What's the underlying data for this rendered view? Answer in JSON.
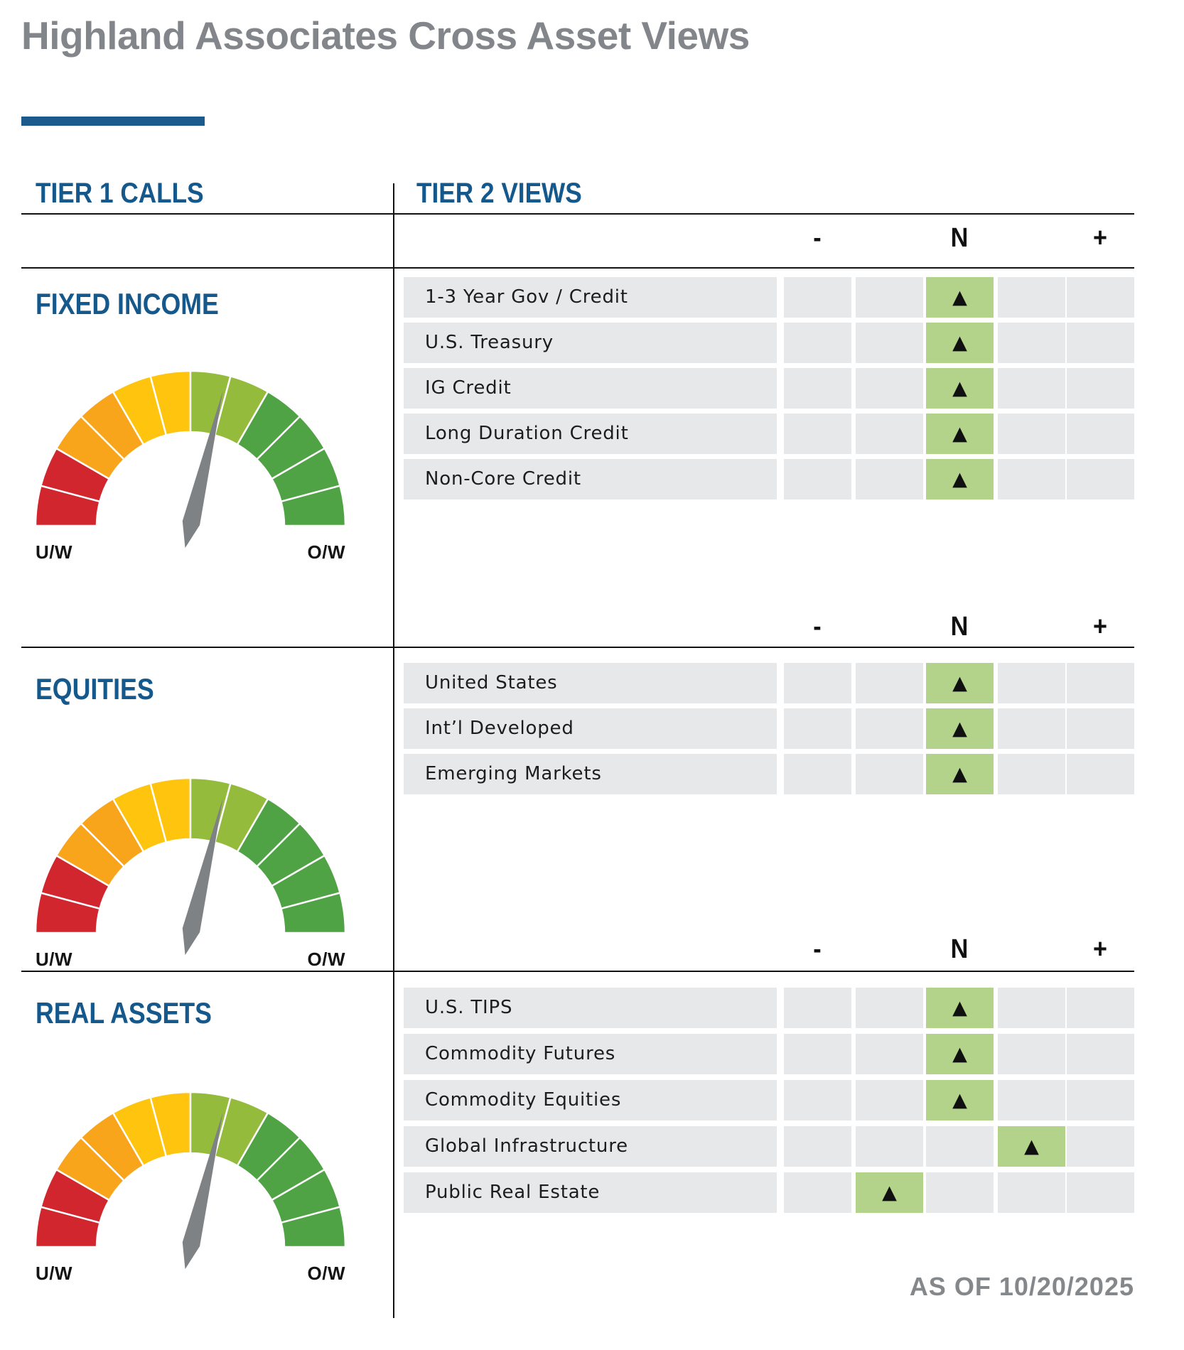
{
  "page": {
    "title": "Highland Associates Cross Asset Views",
    "as_of": "AS OF 10/20/2025"
  },
  "tiers": {
    "tier1": "TIER 1 CALLS",
    "tier2": "TIER 2 VIEWS"
  },
  "scale": {
    "minus": "-",
    "neutral": "N",
    "plus": "+"
  },
  "marker_glyph": "▲",
  "colors": {
    "accent_blue": "#14588c",
    "title_gray": "#828589",
    "cell_gray": "#e7e8e9",
    "active_green": "#b3d38b",
    "text_dark": "#1d1d1f",
    "line_black": "#121212",
    "needle_gray": "#7f8285"
  },
  "gauge": {
    "left_label": "U/W",
    "right_label": "O/W",
    "needle_angle_deg": 13.5,
    "segment_colors": [
      "#d2262e",
      "#d2262e",
      "#f9a51c",
      "#f9a51c",
      "#ffc40e",
      "#ffc40e",
      "#94bb3c",
      "#94bb3c",
      "#50a345",
      "#50a345",
      "#50a345",
      "#50a345"
    ]
  },
  "sections": [
    {
      "name": "FIXED INCOME",
      "rows": [
        {
          "label": "1-3 Year Gov / Credit",
          "position": 2
        },
        {
          "label": "U.S. Treasury",
          "position": 2
        },
        {
          "label": "IG Credit",
          "position": 2
        },
        {
          "label": "Long Duration Credit",
          "position": 2
        },
        {
          "label": "Non-Core Credit",
          "position": 2
        }
      ]
    },
    {
      "name": "EQUITIES",
      "rows": [
        {
          "label": "United States",
          "position": 2
        },
        {
          "label": "Int’l Developed",
          "position": 2
        },
        {
          "label": "Emerging Markets",
          "position": 2
        }
      ]
    },
    {
      "name": "REAL ASSETS",
      "rows": [
        {
          "label": "U.S. TIPS",
          "position": 2
        },
        {
          "label": "Commodity Futures",
          "position": 2
        },
        {
          "label": "Commodity Equities",
          "position": 2
        },
        {
          "label": "Global Infrastructure",
          "position": 3
        },
        {
          "label": "Public Real Estate",
          "position": 1
        }
      ]
    }
  ],
  "chart_data": [
    {
      "type": "gauge",
      "title": "FIXED INCOME",
      "scale_left": "U/W",
      "scale_right": "O/W",
      "segments": 12,
      "reading": "needle slightly right of neutral (mild overweight lean)"
    },
    {
      "type": "gauge",
      "title": "EQUITIES",
      "scale_left": "U/W",
      "scale_right": "O/W",
      "segments": 12,
      "reading": "needle slightly right of neutral (mild overweight lean)"
    },
    {
      "type": "gauge",
      "title": "REAL ASSETS",
      "scale_left": "U/W",
      "scale_right": "O/W",
      "segments": 12,
      "reading": "needle slightly right of neutral (mild overweight lean)"
    },
    {
      "type": "table",
      "title": "TIER 2 VIEWS",
      "columns": [
        "-",
        "N",
        "+"
      ],
      "scale_note": "5 cells per row; values -2..+2 where 0 = N",
      "rows": [
        {
          "label": "1-3 Year Gov / Credit",
          "value": 0
        },
        {
          "label": "U.S. Treasury",
          "value": 0
        },
        {
          "label": "IG Credit",
          "value": 0
        },
        {
          "label": "Long Duration Credit",
          "value": 0
        },
        {
          "label": "Non-Core Credit",
          "value": 0
        },
        {
          "label": "United States",
          "value": 0
        },
        {
          "label": "Int’l Developed",
          "value": 0
        },
        {
          "label": "Emerging Markets",
          "value": 0
        },
        {
          "label": "U.S. TIPS",
          "value": 0
        },
        {
          "label": "Commodity Futures",
          "value": 0
        },
        {
          "label": "Commodity Equities",
          "value": 0
        },
        {
          "label": "Global Infrastructure",
          "value": 1
        },
        {
          "label": "Public Real Estate",
          "value": -1
        }
      ]
    }
  ]
}
